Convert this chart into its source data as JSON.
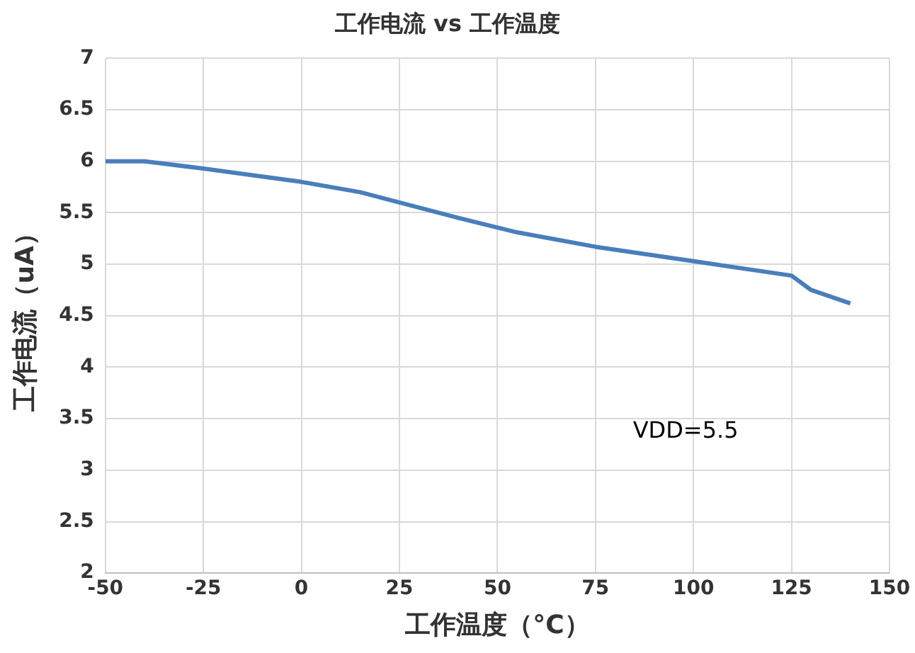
{
  "chart_data": {
    "type": "line",
    "title": "工作电流 vs 工作温度",
    "xlabel": "工作温度（°C）",
    "ylabel": "工作电流（uA）",
    "x": [
      -50,
      -40,
      -25,
      0,
      15,
      25,
      40,
      55,
      75,
      100,
      125,
      130,
      140
    ],
    "series": [
      {
        "color": "#4a7ebb",
        "values": [
          6.0,
          6.0,
          5.93,
          5.8,
          5.7,
          5.6,
          5.45,
          5.31,
          5.17,
          5.03,
          4.89,
          4.75,
          4.62
        ]
      }
    ],
    "xlim": [
      -50,
      150
    ],
    "xticks": [
      -50,
      -25,
      0,
      25,
      50,
      75,
      100,
      125,
      150
    ],
    "ylim": [
      2,
      7
    ],
    "yticks": [
      2,
      2.5,
      3,
      3.5,
      4,
      4.5,
      5,
      5.5,
      6,
      6.5,
      7
    ],
    "grid": true,
    "legend": false,
    "marker": "none",
    "line_style": "solid",
    "annotations": [
      "VDD=5.5"
    ]
  }
}
